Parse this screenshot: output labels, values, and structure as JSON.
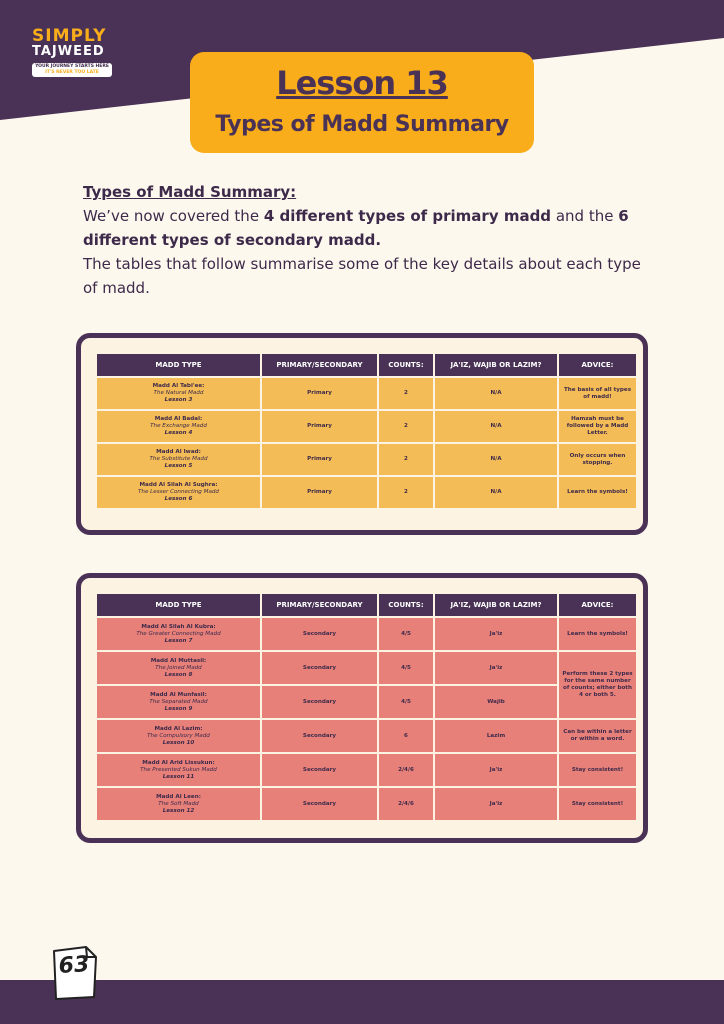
{
  "logo": {
    "line1": "SIMPLY",
    "line2": "TAJWEED",
    "tagline1": "YOUR JOURNEY STARTS HERE",
    "tagline2": "IT'S NEVER TOO LATE"
  },
  "header": {
    "title": "Lesson 13",
    "subtitle": "Types of Madd Summary"
  },
  "intro": {
    "heading": "Types of Madd Summary:",
    "text1": "We’ve now covered the ",
    "bold1": "4 different types of primary madd",
    "text2": " and the ",
    "bold2": "6 different types of secondary madd.",
    "paragraph2": "The tables that follow summarise some of the key details about each type of madd."
  },
  "tables": [
    {
      "headers": [
        "MADD TYPE",
        "PRIMARY/SECONDARY",
        "COUNTS:",
        "JA'IZ, WAJIB OR LAZIM?",
        "ADVICE:"
      ],
      "rows": [
        {
          "name": "Madd Al Tabi'ee:",
          "translation": "The Natural Madd",
          "lesson": "Lesson 3",
          "type": "Primary",
          "counts": "2",
          "ruling": "N/A",
          "advice": "The basis of all types of madd!"
        },
        {
          "name": "Madd Al Badal:",
          "translation": "The Exchange Madd",
          "lesson": "Lesson 4",
          "type": "Primary",
          "counts": "2",
          "ruling": "N/A",
          "advice": "Hamzah must be followed by a Madd Letter."
        },
        {
          "name": "Madd Al Iwad:",
          "translation": "The Substitute Madd",
          "lesson": "Lesson 5",
          "type": "Primary",
          "counts": "2",
          "ruling": "N/A",
          "advice": "Only occurs when stopping."
        },
        {
          "name": "Madd Al Silah Al Sughra:",
          "translation": "The Lesser Connecting Madd",
          "lesson": "Lesson 6",
          "type": "Primary",
          "counts": "2",
          "ruling": "N/A",
          "advice": "Learn the symbols!"
        }
      ]
    },
    {
      "headers": [
        "MADD TYPE",
        "PRIMARY/SECONDARY",
        "COUNTS:",
        "JA'IZ, WAJIB OR LAZIM?",
        "ADVICE:"
      ],
      "rows": [
        {
          "name": "Madd Al Silah Al Kubra:",
          "translation": "The Greater Connecting Madd",
          "lesson": "Lesson 7",
          "type": "Secondary",
          "counts": "4/5",
          "ruling": "Ja'iz",
          "advice": "Learn the symbols!"
        },
        {
          "name": "Madd Al Muttasil:",
          "translation": "The Joined Madd",
          "lesson": "Lesson 8",
          "type": "Secondary",
          "counts": "4/5",
          "ruling": "Ja'iz",
          "advice": "Perform these 2 types for the same number of counts; either both 4 or both 5."
        },
        {
          "name": "Madd Al Munfasil:",
          "translation": "The Separated Madd",
          "lesson": "Lesson 9",
          "type": "Secondary",
          "counts": "4/5",
          "ruling": "Wajib"
        },
        {
          "name": "Madd Al Lazim:",
          "translation": "The Compulsory Madd",
          "lesson": "Lesson 10",
          "type": "Secondary",
          "counts": "6",
          "ruling": "Lazim",
          "advice": "Can be within a letter or within a word."
        },
        {
          "name": "Madd Al Arid Lissukun:",
          "translation": "The Presented Sukun Madd",
          "lesson": "Lesson 11",
          "type": "Secondary",
          "counts": "2/4/6",
          "ruling": "Ja'iz",
          "advice": "Stay consistent!"
        },
        {
          "name": "Madd Al Leen:",
          "translation": "The Soft Madd",
          "lesson": "Lesson 12",
          "type": "Secondary",
          "counts": "2/4/6",
          "ruling": "Ja'iz",
          "advice": "Stay consistent!"
        }
      ]
    }
  ],
  "page_number": "63"
}
